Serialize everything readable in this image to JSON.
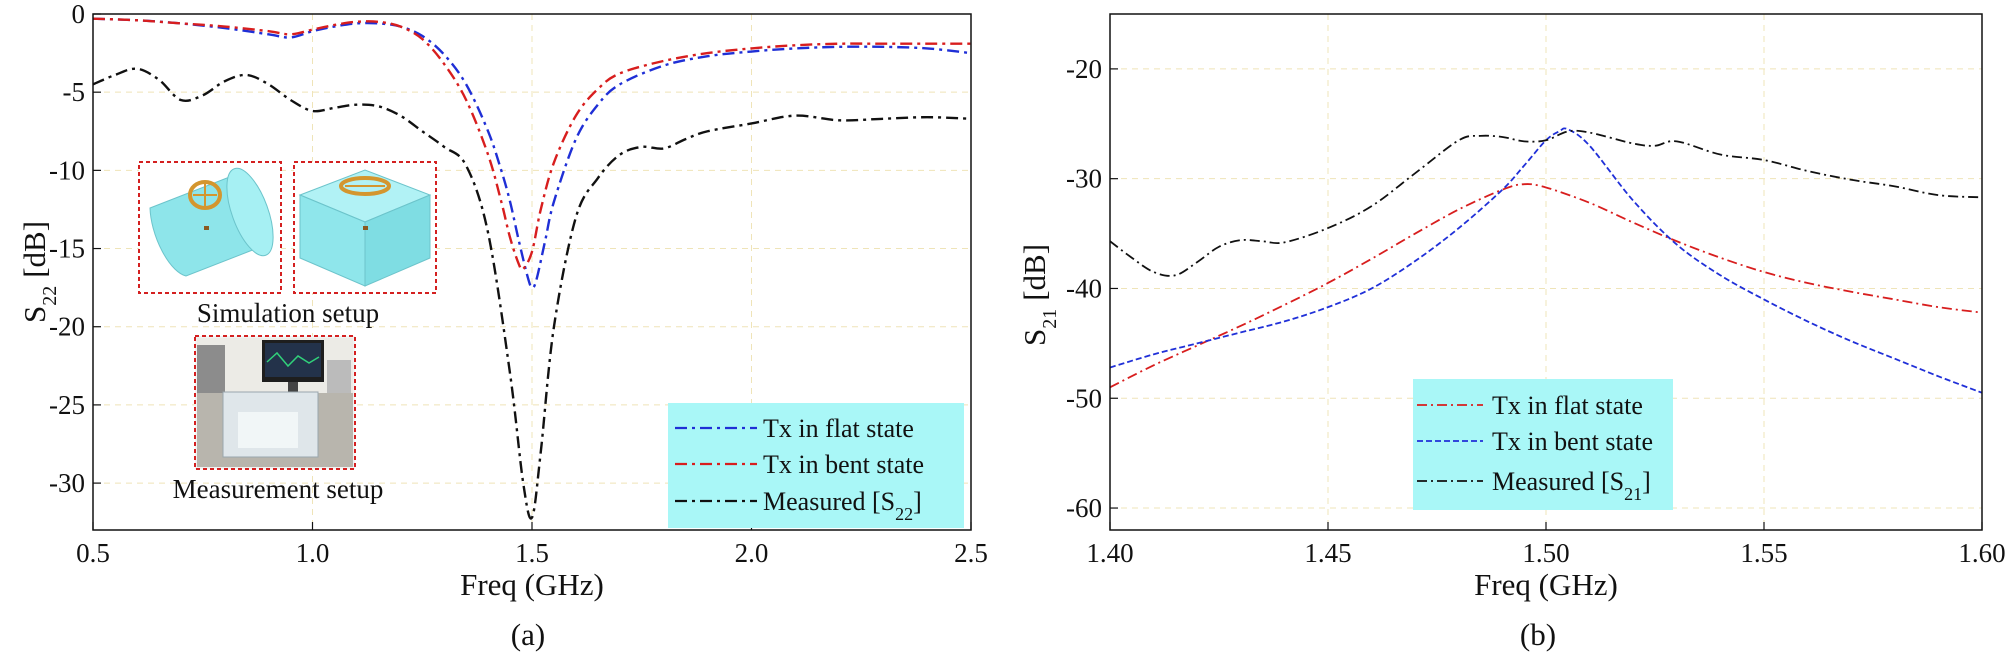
{
  "chart_data": [
    {
      "type": "line",
      "caption": "(a)",
      "xlabel": "Freq (GHz)",
      "ylabel_main": "S",
      "ylabel_sub": "22",
      "ylabel_unit": "[dB]",
      "xlim": [
        0.5,
        2.5
      ],
      "ylim": [
        -33,
        0
      ],
      "xticks": [
        0.5,
        1.0,
        1.5,
        2.0,
        2.5
      ],
      "xtick_labels": [
        "0.5",
        "1.0",
        "1.5",
        "2.0",
        "2.5"
      ],
      "yticks": [
        0,
        -5,
        -10,
        -15,
        -20,
        -25,
        -30
      ],
      "ytick_labels": [
        "0",
        "-5",
        "-10",
        "-15",
        "-20",
        "-25",
        "-30"
      ],
      "grid": true,
      "legend_position": "bottom-right",
      "legend_bg": "#a9f7f7",
      "inset_labels": {
        "simulation": "Simulation setup",
        "measurement": "Measurement setup"
      },
      "series": [
        {
          "name": "Tx in flat state",
          "color": "#1f2fd6",
          "dash": "dashdot",
          "x": [
            0.5,
            0.6,
            0.7,
            0.8,
            0.9,
            0.95,
            1.0,
            1.05,
            1.1,
            1.15,
            1.2,
            1.25,
            1.3,
            1.35,
            1.4,
            1.43,
            1.45,
            1.47,
            1.49,
            1.5,
            1.51,
            1.53,
            1.55,
            1.6,
            1.65,
            1.7,
            1.8,
            1.9,
            2.0,
            2.1,
            2.2,
            2.3,
            2.4,
            2.5
          ],
          "y": [
            -0.3,
            -0.4,
            -0.6,
            -0.9,
            -1.3,
            -1.5,
            -1.1,
            -0.8,
            -0.6,
            -0.6,
            -0.8,
            -1.4,
            -2.6,
            -4.5,
            -7.5,
            -10.0,
            -12.0,
            -14.5,
            -16.8,
            -17.5,
            -17.0,
            -14.5,
            -12.0,
            -8.0,
            -5.8,
            -4.5,
            -3.3,
            -2.7,
            -2.4,
            -2.2,
            -2.1,
            -2.1,
            -2.2,
            -2.5
          ]
        },
        {
          "name": "Tx in bent state",
          "color": "#d81e1e",
          "dash": "dashdot",
          "x": [
            0.5,
            0.6,
            0.7,
            0.8,
            0.9,
            0.95,
            1.0,
            1.05,
            1.1,
            1.15,
            1.2,
            1.25,
            1.3,
            1.35,
            1.4,
            1.43,
            1.45,
            1.47,
            1.48,
            1.5,
            1.52,
            1.55,
            1.6,
            1.65,
            1.7,
            1.8,
            1.9,
            2.0,
            2.1,
            2.2,
            2.3,
            2.4,
            2.5
          ],
          "y": [
            -0.3,
            -0.4,
            -0.6,
            -0.8,
            -1.1,
            -1.3,
            -1.0,
            -0.7,
            -0.5,
            -0.5,
            -0.8,
            -1.6,
            -3.2,
            -5.5,
            -9.0,
            -12.0,
            -14.3,
            -16.0,
            -16.3,
            -15.2,
            -12.5,
            -9.5,
            -6.5,
            -4.8,
            -3.8,
            -3.0,
            -2.5,
            -2.2,
            -2.0,
            -1.9,
            -1.9,
            -1.9,
            -1.9
          ]
        },
        {
          "name": "Measured [S22]",
          "color": "#111111",
          "dash": "dashdot",
          "x": [
            0.5,
            0.55,
            0.6,
            0.65,
            0.7,
            0.75,
            0.8,
            0.85,
            0.9,
            0.95,
            1.0,
            1.05,
            1.1,
            1.15,
            1.2,
            1.25,
            1.3,
            1.35,
            1.4,
            1.45,
            1.48,
            1.5,
            1.52,
            1.55,
            1.6,
            1.65,
            1.7,
            1.75,
            1.8,
            1.85,
            1.9,
            2.0,
            2.1,
            2.2,
            2.3,
            2.4,
            2.5
          ],
          "y": [
            -4.5,
            -3.9,
            -3.5,
            -4.2,
            -5.5,
            -5.2,
            -4.3,
            -3.9,
            -4.5,
            -5.5,
            -6.2,
            -6.0,
            -5.8,
            -5.9,
            -6.5,
            -7.5,
            -8.5,
            -9.7,
            -14.0,
            -23.0,
            -30.0,
            -32.2,
            -28.0,
            -20.0,
            -13.0,
            -10.5,
            -9.0,
            -8.5,
            -8.6,
            -8.0,
            -7.5,
            -7.0,
            -6.5,
            -6.8,
            -6.7,
            -6.6,
            -6.7
          ]
        }
      ]
    },
    {
      "type": "line",
      "caption": "(b)",
      "xlabel": "Freq (GHz)",
      "ylabel_main": "S",
      "ylabel_sub": "21",
      "ylabel_unit": "[dB]",
      "xlim": [
        1.4,
        1.6
      ],
      "ylim": [
        -62,
        -15
      ],
      "xticks": [
        1.4,
        1.45,
        1.5,
        1.55,
        1.6
      ],
      "xtick_labels": [
        "1.40",
        "1.45",
        "1.50",
        "1.55",
        "1.60"
      ],
      "yticks": [
        -20,
        -30,
        -40,
        -50,
        -60
      ],
      "ytick_labels": [
        "-20",
        "-30",
        "-40",
        "-50",
        "-60"
      ],
      "grid": true,
      "legend_position": "lower-center",
      "legend_bg": "#a9f7f7",
      "series": [
        {
          "name": "Tx in flat state",
          "color": "#d81e1e",
          "dash": "dashdot",
          "x": [
            1.4,
            1.41,
            1.42,
            1.43,
            1.44,
            1.45,
            1.46,
            1.47,
            1.48,
            1.49,
            1.495,
            1.5,
            1.51,
            1.52,
            1.53,
            1.54,
            1.55,
            1.56,
            1.57,
            1.58,
            1.59,
            1.6
          ],
          "y": [
            -49.0,
            -47.0,
            -45.2,
            -43.4,
            -41.5,
            -39.5,
            -37.3,
            -35.0,
            -32.8,
            -31.0,
            -30.5,
            -30.8,
            -32.2,
            -34.0,
            -35.7,
            -37.2,
            -38.5,
            -39.5,
            -40.3,
            -41.0,
            -41.7,
            -42.2
          ]
        },
        {
          "name": "Tx in bent state",
          "color": "#2030d8",
          "dash": "dash",
          "x": [
            1.4,
            1.41,
            1.42,
            1.43,
            1.44,
            1.45,
            1.46,
            1.47,
            1.48,
            1.49,
            1.495,
            1.5,
            1.503,
            1.505,
            1.51,
            1.52,
            1.53,
            1.54,
            1.55,
            1.56,
            1.57,
            1.58,
            1.59,
            1.6
          ],
          "y": [
            -47.2,
            -46.0,
            -45.0,
            -44.0,
            -43.0,
            -41.7,
            -40.0,
            -37.5,
            -34.5,
            -31.0,
            -28.8,
            -26.5,
            -25.7,
            -25.5,
            -27.0,
            -32.0,
            -36.0,
            -38.8,
            -41.0,
            -43.0,
            -44.8,
            -46.4,
            -48.0,
            -49.5
          ]
        },
        {
          "name": "Measured [S21]",
          "color": "#111111",
          "dash": "dashdot",
          "x": [
            1.4,
            1.405,
            1.41,
            1.415,
            1.42,
            1.425,
            1.43,
            1.435,
            1.44,
            1.45,
            1.46,
            1.47,
            1.48,
            1.485,
            1.49,
            1.495,
            1.5,
            1.505,
            1.51,
            1.52,
            1.525,
            1.53,
            1.54,
            1.55,
            1.56,
            1.57,
            1.58,
            1.59,
            1.6
          ],
          "y": [
            -35.7,
            -37.2,
            -38.5,
            -38.8,
            -37.6,
            -36.2,
            -35.6,
            -35.7,
            -35.8,
            -34.5,
            -32.5,
            -29.5,
            -26.5,
            -26.1,
            -26.2,
            -26.6,
            -26.5,
            -25.7,
            -25.8,
            -26.8,
            -27.0,
            -26.6,
            -27.8,
            -28.3,
            -29.3,
            -30.1,
            -30.7,
            -31.5,
            -31.7
          ]
        }
      ]
    }
  ]
}
